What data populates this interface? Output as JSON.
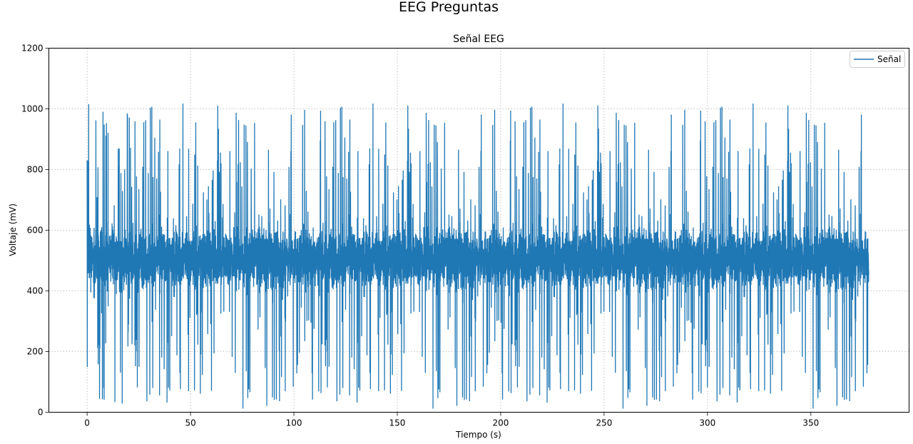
{
  "figure": {
    "suptitle": "EEG Preguntas"
  },
  "chart_data": {
    "type": "line",
    "title": "Señal EEG",
    "xlabel": "Tiempo (s)",
    "ylabel": "Voltaje (mV)",
    "xlim": [
      -18.5,
      397.5
    ],
    "ylim": [
      0,
      1200
    ],
    "xticks": [
      0,
      50,
      100,
      150,
      200,
      250,
      300,
      350
    ],
    "xtick_labels": [
      "0",
      "50",
      "100",
      "150",
      "200",
      "250",
      "300",
      "350"
    ],
    "yticks": [
      0,
      200,
      400,
      600,
      800,
      1000,
      1200
    ],
    "ytick_labels": [
      "0",
      "200",
      "400",
      "600",
      "800",
      "1000",
      "1200"
    ],
    "grid": true,
    "legend_position": "top-right",
    "series": [
      {
        "name": "Señal",
        "color": "#1f77b4",
        "x_range": [
          0,
          378
        ],
        "baseline": 500,
        "typical_range": [
          380,
          640
        ],
        "min": 0,
        "max": 1020,
        "note": "dense high-frequency signal"
      }
    ]
  }
}
